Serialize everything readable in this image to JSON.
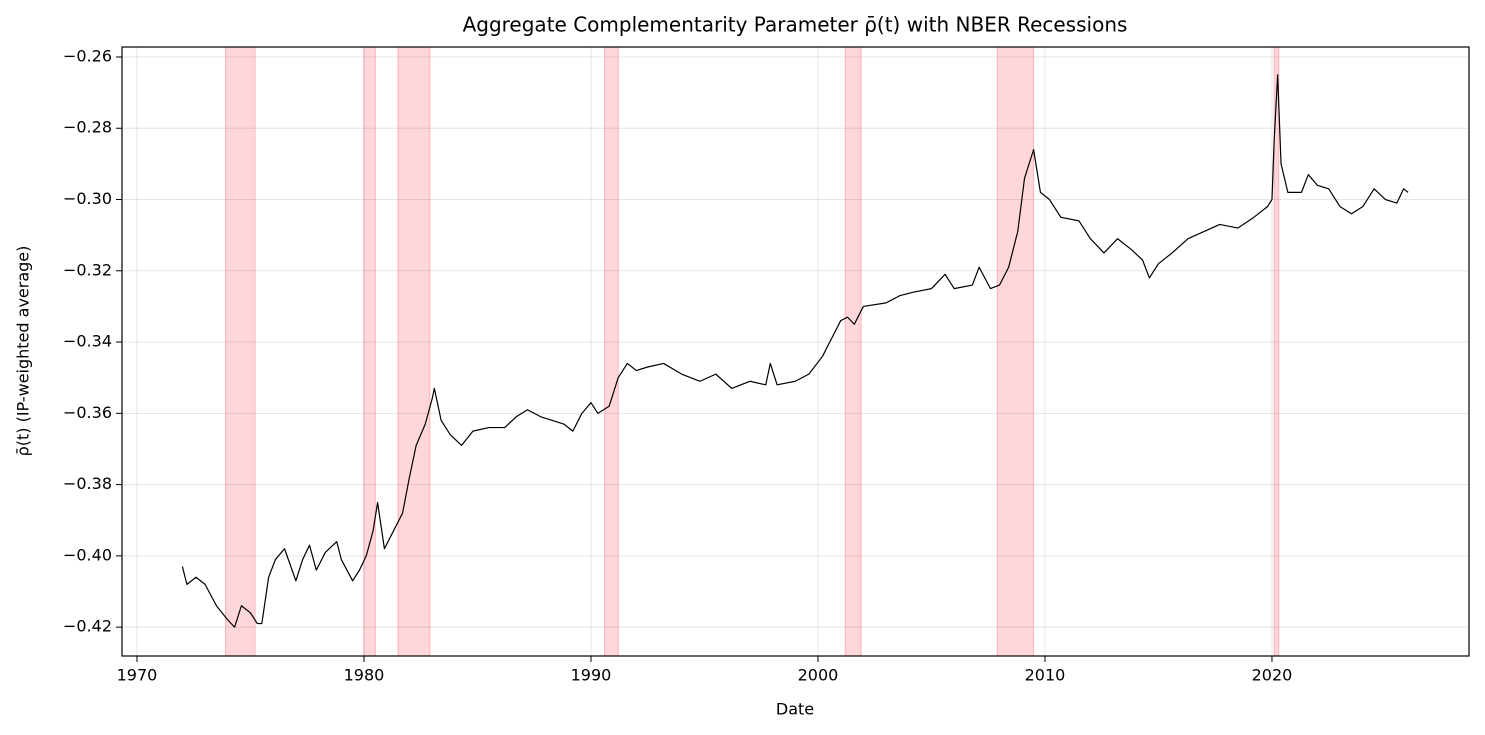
{
  "chart_data": {
    "type": "line",
    "title": "Aggregate Complementarity Parameter ρ̄(t) with NBER Recessions",
    "xlabel": "Date",
    "ylabel": "ρ̄(t) (IP-weighted average)",
    "xlim": [
      1969.34,
      2028.68
    ],
    "ylim": [
      -0.4281,
      -0.2572
    ],
    "xticks": [
      1970,
      1980,
      1990,
      2000,
      2010,
      2020
    ],
    "yticks": [
      {
        "value": -0.42,
        "label": "−0.42"
      },
      {
        "value": -0.4,
        "label": "−0.40"
      },
      {
        "value": -0.38,
        "label": "−0.38"
      },
      {
        "value": -0.36,
        "label": "−0.36"
      },
      {
        "value": -0.34,
        "label": "−0.34"
      },
      {
        "value": -0.32,
        "label": "−0.32"
      },
      {
        "value": -0.3,
        "label": "−0.30"
      },
      {
        "value": -0.28,
        "label": "−0.28"
      },
      {
        "value": -0.26,
        "label": "−0.26"
      }
    ],
    "grid": true,
    "color": "#000000",
    "recession_color": "#ffd6d9",
    "recessions": [
      {
        "start": 1973.9,
        "end": 1975.2
      },
      {
        "start": 1980.0,
        "end": 1980.5
      },
      {
        "start": 1981.5,
        "end": 1982.9
      },
      {
        "start": 1990.6,
        "end": 1991.2
      },
      {
        "start": 2001.2,
        "end": 2001.9
      },
      {
        "start": 2007.9,
        "end": 2009.5
      },
      {
        "start": 2020.1,
        "end": 2020.3
      }
    ],
    "x": [
      1972.0,
      1972.2,
      1972.6,
      1973.0,
      1973.5,
      1974.0,
      1974.3,
      1974.6,
      1975.0,
      1975.3,
      1975.5,
      1975.8,
      1976.1,
      1976.5,
      1977.0,
      1977.3,
      1977.6,
      1977.9,
      1978.3,
      1978.8,
      1979.0,
      1979.5,
      1979.8,
      1980.1,
      1980.4,
      1980.6,
      1980.9,
      1981.3,
      1981.7,
      1982.0,
      1982.3,
      1982.7,
      1983.0,
      1983.1,
      1983.4,
      1983.8,
      1984.3,
      1984.8,
      1985.5,
      1986.2,
      1986.7,
      1987.2,
      1987.8,
      1988.3,
      1988.8,
      1989.2,
      1989.6,
      1990.0,
      1990.3,
      1990.8,
      1991.2,
      1991.6,
      1992.0,
      1992.5,
      1993.2,
      1994.0,
      1994.8,
      1995.5,
      1996.2,
      1997.0,
      1997.7,
      1997.9,
      1998.2,
      1999.0,
      1999.6,
      2000.2,
      2000.6,
      2001.0,
      2001.3,
      2001.6,
      2002.0,
      2003.0,
      2003.6,
      2004.2,
      2005.0,
      2005.6,
      2006.0,
      2006.8,
      2007.1,
      2007.6,
      2008.0,
      2008.4,
      2008.8,
      2009.1,
      2009.5,
      2009.8,
      2010.2,
      2010.7,
      2011.5,
      2012.0,
      2012.6,
      2013.2,
      2013.8,
      2014.3,
      2014.6,
      2015.0,
      2015.6,
      2016.3,
      2017.0,
      2017.7,
      2018.5,
      2019.2,
      2019.8,
      2020.0,
      2020.1,
      2020.25,
      2020.4,
      2020.7,
      2021.3,
      2021.6,
      2022.0,
      2022.5,
      2023.0,
      2023.5,
      2024.0,
      2024.5,
      2025.0,
      2025.5,
      2025.8,
      2026.0
    ],
    "values": [
      -0.403,
      -0.408,
      -0.406,
      -0.408,
      -0.414,
      -0.418,
      -0.42,
      -0.414,
      -0.416,
      -0.419,
      -0.419,
      -0.406,
      -0.401,
      -0.398,
      -0.407,
      -0.401,
      -0.397,
      -0.404,
      -0.399,
      -0.396,
      -0.401,
      -0.407,
      -0.404,
      -0.4,
      -0.393,
      -0.385,
      -0.398,
      -0.393,
      -0.388,
      -0.378,
      -0.369,
      -0.363,
      -0.356,
      -0.353,
      -0.362,
      -0.366,
      -0.369,
      -0.365,
      -0.364,
      -0.364,
      -0.361,
      -0.359,
      -0.361,
      -0.362,
      -0.363,
      -0.365,
      -0.36,
      -0.357,
      -0.36,
      -0.358,
      -0.35,
      -0.346,
      -0.348,
      -0.347,
      -0.346,
      -0.349,
      -0.351,
      -0.349,
      -0.353,
      -0.351,
      -0.352,
      -0.346,
      -0.352,
      -0.351,
      -0.349,
      -0.344,
      -0.339,
      -0.334,
      -0.333,
      -0.335,
      -0.33,
      -0.329,
      -0.327,
      -0.326,
      -0.325,
      -0.321,
      -0.325,
      -0.324,
      -0.319,
      -0.325,
      -0.324,
      -0.319,
      -0.309,
      -0.294,
      -0.286,
      -0.298,
      -0.3,
      -0.305,
      -0.306,
      -0.311,
      -0.315,
      -0.311,
      -0.314,
      -0.317,
      -0.322,
      -0.318,
      -0.315,
      -0.311,
      -0.309,
      -0.307,
      -0.308,
      -0.305,
      -0.302,
      -0.3,
      -0.283,
      -0.265,
      -0.29,
      -0.298,
      -0.298,
      -0.293,
      -0.296,
      -0.297,
      -0.302,
      -0.304,
      -0.302,
      -0.297,
      -0.3,
      -0.301,
      -0.297,
      -0.298
    ]
  }
}
